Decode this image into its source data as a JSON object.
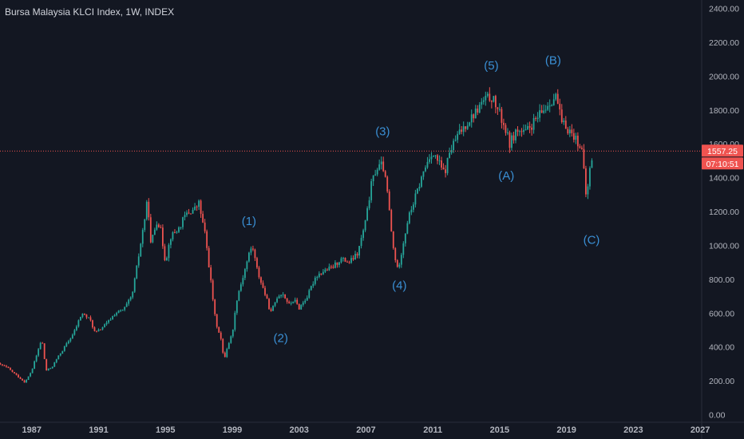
{
  "title": "Bursa Malaysia KLCI Index, 1W, INDEX",
  "colors": {
    "background": "#131722",
    "up": "#26a69a",
    "down": "#ef5350",
    "wave_label": "#3a8fd4",
    "axis_text": "#b2b5be",
    "price_line": "#ef5350",
    "price_badge": "#ef5350"
  },
  "price_tag": {
    "value": "1557.25",
    "countdown": "07:10:51",
    "level": 1557.25
  },
  "chart_data": {
    "type": "candlestick",
    "title": "Bursa Malaysia KLCI Index, 1W, INDEX",
    "x_ticks": [
      "1987",
      "1991",
      "1995",
      "1999",
      "2003",
      "2007",
      "2011",
      "2015",
      "2019",
      "2023",
      "2027"
    ],
    "y_ticks": [
      "0.00",
      "200.00",
      "400.00",
      "600.00",
      "800.00",
      "1000.00",
      "1200.00",
      "1400.00",
      "1600.00",
      "1800.00",
      "2000.00",
      "2200.00",
      "2400.00"
    ],
    "xlim": [
      1985.1,
      2026.9
    ],
    "ylim": [
      -40,
      2450
    ],
    "grid": false,
    "series": [
      {
        "x": [
          1985.0,
          1985.5,
          1986.0,
          1986.6,
          1987.0,
          1987.6,
          1987.85,
          1988.2,
          1988.5,
          1989.5,
          1990.0,
          1990.5,
          1990.8,
          1991.5,
          1992.0,
          1992.5,
          1993.0,
          1993.5,
          1993.95,
          1994.1,
          1994.5,
          1994.7,
          1995.0,
          1995.3,
          1995.8,
          1996.2,
          1996.8,
          1997.0,
          1997.4,
          1997.7,
          1998.0,
          1998.3,
          1998.5,
          1998.7,
          1999.0,
          1999.3,
          1999.6,
          2000.0,
          2000.2,
          2000.5,
          2001.0,
          2001.3,
          2001.7,
          2002.0,
          2002.4,
          2002.7,
          2003.0,
          2003.5,
          2004.0,
          2004.5,
          2005.0,
          2005.5,
          2006.0,
          2006.5,
          2007.0,
          2007.3,
          2007.6,
          2008.0,
          2008.3,
          2008.6,
          2008.9,
          2009.2,
          2009.5,
          2010.0,
          2010.5,
          2010.9,
          2011.3,
          2011.7,
          2012.0,
          2012.5,
          2013.0,
          2013.5,
          2014.0,
          2014.5,
          2014.9,
          2015.3,
          2015.6,
          2016.0,
          2016.5,
          2017.0,
          2017.5,
          2018.0,
          2018.4,
          2018.7,
          2019.0,
          2019.5,
          2019.9,
          2020.2,
          2020.35,
          2020.6
        ],
        "y": [
          300,
          280,
          240,
          190,
          260,
          450,
          260,
          280,
          330,
          480,
          600,
          560,
          480,
          540,
          600,
          620,
          700,
          1000,
          1280,
          1000,
          1150,
          1100,
          900,
          1050,
          1100,
          1180,
          1220,
          1250,
          1050,
          800,
          550,
          460,
          320,
          400,
          480,
          700,
          800,
          950,
          1000,
          850,
          700,
          600,
          700,
          720,
          650,
          680,
          630,
          700,
          820,
          850,
          870,
          920,
          900,
          950,
          1150,
          1350,
          1450,
          1480,
          1300,
          1000,
          850,
          1000,
          1150,
          1300,
          1450,
          1550,
          1500,
          1420,
          1550,
          1650,
          1720,
          1780,
          1850,
          1880,
          1800,
          1700,
          1600,
          1680,
          1660,
          1720,
          1780,
          1850,
          1880,
          1720,
          1700,
          1640,
          1580,
          1260,
          1420,
          1560
        ]
      }
    ],
    "annotations": [
      {
        "text": "(1)",
        "x": 2000.0,
        "y": 1120
      },
      {
        "text": "(2)",
        "x": 2001.9,
        "y": 430
      },
      {
        "text": "(3)",
        "x": 2008.0,
        "y": 1650
      },
      {
        "text": "(4)",
        "x": 2009.0,
        "y": 740
      },
      {
        "text": "(5)",
        "x": 2014.5,
        "y": 2040
      },
      {
        "text": "(A)",
        "x": 2015.4,
        "y": 1390
      },
      {
        "text": "(B)",
        "x": 2018.2,
        "y": 2070
      },
      {
        "text": "(C)",
        "x": 2020.5,
        "y": 1010
      }
    ]
  }
}
